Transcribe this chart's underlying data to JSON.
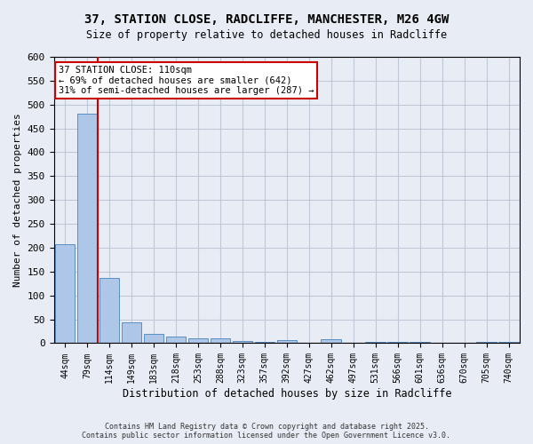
{
  "title_line1": "37, STATION CLOSE, RADCLIFFE, MANCHESTER, M26 4GW",
  "title_line2": "Size of property relative to detached houses in Radcliffe",
  "xlabel": "Distribution of detached houses by size in Radcliffe",
  "ylabel": "Number of detached properties",
  "categories": [
    "44sqm",
    "79sqm",
    "114sqm",
    "149sqm",
    "183sqm",
    "218sqm",
    "253sqm",
    "288sqm",
    "323sqm",
    "357sqm",
    "392sqm",
    "427sqm",
    "462sqm",
    "497sqm",
    "531sqm",
    "566sqm",
    "601sqm",
    "636sqm",
    "670sqm",
    "705sqm",
    "740sqm"
  ],
  "values": [
    207,
    481,
    136,
    44,
    20,
    14,
    11,
    10,
    4,
    2,
    7,
    1,
    8,
    1,
    3,
    3,
    2,
    1,
    1,
    3,
    2
  ],
  "bar_color": "#aec6e8",
  "bar_edge_color": "#5a8fc2",
  "grid_color": "#c0c8d8",
  "background_color": "#e8edf5",
  "vline_color": "#cc0000",
  "vline_bar_index": 2,
  "annotation_text": "37 STATION CLOSE: 110sqm\n← 69% of detached houses are smaller (642)\n31% of semi-detached houses are larger (287) →",
  "annotation_box_facecolor": "#ffffff",
  "annotation_box_edgecolor": "#cc0000",
  "ylim": [
    0,
    600
  ],
  "yticks": [
    0,
    50,
    100,
    150,
    200,
    250,
    300,
    350,
    400,
    450,
    500,
    550,
    600
  ],
  "footer_line1": "Contains HM Land Registry data © Crown copyright and database right 2025.",
  "footer_line2": "Contains public sector information licensed under the Open Government Licence v3.0."
}
